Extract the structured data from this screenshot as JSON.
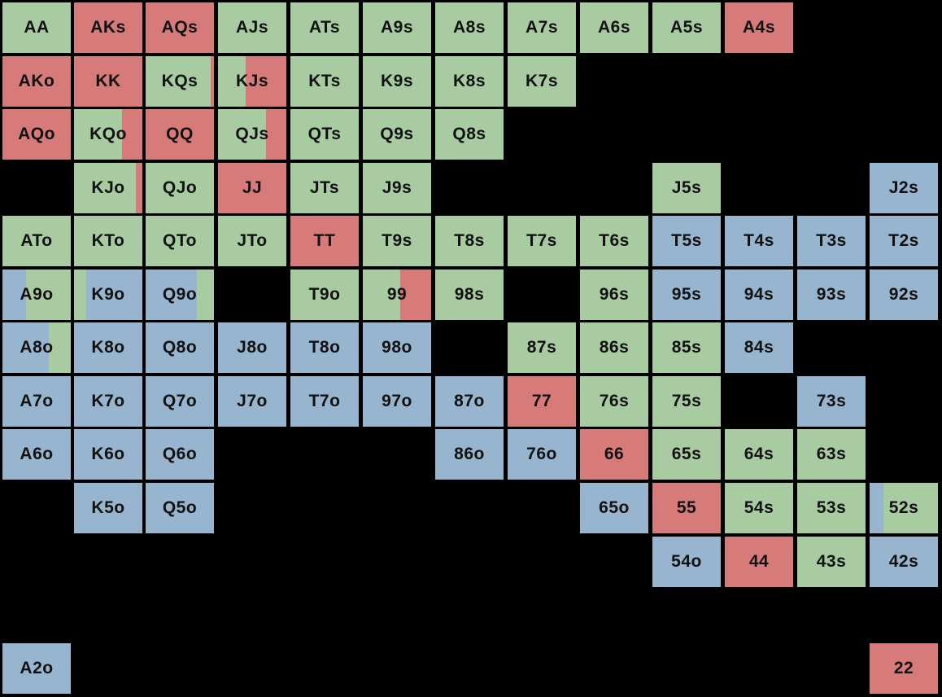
{
  "colors": {
    "background": "#000000",
    "green": "#A9CBA2",
    "red": "#D77A7A",
    "blue": "#97B5CE"
  },
  "chart_data": {
    "type": "table",
    "rows": [
      {
        "cells": [
          {
            "label": "AA",
            "color": "green"
          },
          {
            "label": "AKs",
            "color": "red"
          },
          {
            "label": "AQs",
            "color": "red"
          },
          {
            "label": "AJs",
            "color": "green"
          },
          {
            "label": "ATs",
            "color": "green"
          },
          {
            "label": "A9s",
            "color": "green"
          },
          {
            "label": "A8s",
            "color": "green"
          },
          {
            "label": "A7s",
            "color": "green"
          },
          {
            "label": "A6s",
            "color": "green"
          },
          {
            "label": "A5s",
            "color": "green"
          },
          {
            "label": "A4s",
            "color": "red"
          },
          null,
          null
        ]
      },
      {
        "cells": [
          {
            "label": "AKo",
            "color": "red"
          },
          {
            "label": "KK",
            "color": "red"
          },
          {
            "label": "KQs",
            "color": "green",
            "split": {
              "color": "red",
              "side": "right",
              "fraction": 0.05
            }
          },
          {
            "label": "KJs",
            "color": "green",
            "split": {
              "color": "red",
              "side": "right",
              "fraction": 0.6
            }
          },
          {
            "label": "KTs",
            "color": "green"
          },
          {
            "label": "K9s",
            "color": "green"
          },
          {
            "label": "K8s",
            "color": "green"
          },
          {
            "label": "K7s",
            "color": "green"
          },
          null,
          null,
          null,
          null,
          null
        ]
      },
      {
        "cells": [
          {
            "label": "AQo",
            "color": "red"
          },
          {
            "label": "KQo",
            "color": "green",
            "split": {
              "color": "red",
              "side": "right",
              "fraction": 0.3
            }
          },
          {
            "label": "QQ",
            "color": "red"
          },
          {
            "label": "QJs",
            "color": "green",
            "split": {
              "color": "red",
              "side": "right",
              "fraction": 0.3
            }
          },
          {
            "label": "QTs",
            "color": "green"
          },
          {
            "label": "Q9s",
            "color": "green"
          },
          {
            "label": "Q8s",
            "color": "green"
          },
          null,
          null,
          null,
          null,
          null,
          null
        ]
      },
      {
        "cells": [
          null,
          {
            "label": "KJo",
            "color": "green",
            "split": {
              "color": "red",
              "side": "right",
              "fraction": 0.1
            }
          },
          {
            "label": "QJo",
            "color": "green"
          },
          {
            "label": "JJ",
            "color": "red"
          },
          {
            "label": "JTs",
            "color": "green"
          },
          {
            "label": "J9s",
            "color": "green"
          },
          null,
          null,
          null,
          {
            "label": "J5s",
            "color": "green"
          },
          null,
          null,
          {
            "label": "J2s",
            "color": "blue"
          }
        ]
      },
      {
        "cells": [
          {
            "label": "ATo",
            "color": "green"
          },
          {
            "label": "KTo",
            "color": "green"
          },
          {
            "label": "QTo",
            "color": "green"
          },
          {
            "label": "JTo",
            "color": "green"
          },
          {
            "label": "TT",
            "color": "red"
          },
          {
            "label": "T9s",
            "color": "green"
          },
          {
            "label": "T8s",
            "color": "green"
          },
          {
            "label": "T7s",
            "color": "green"
          },
          {
            "label": "T6s",
            "color": "green"
          },
          {
            "label": "T5s",
            "color": "blue"
          },
          {
            "label": "T4s",
            "color": "blue"
          },
          {
            "label": "T3s",
            "color": "blue"
          },
          {
            "label": "T2s",
            "color": "blue"
          }
        ]
      },
      {
        "cells": [
          {
            "label": "A9o",
            "color": "green",
            "split": {
              "color": "blue",
              "side": "left",
              "fraction": 0.35
            }
          },
          {
            "label": "K9o",
            "color": "blue",
            "split": {
              "color": "green",
              "side": "left",
              "fraction": 0.18
            }
          },
          {
            "label": "Q9o",
            "color": "blue",
            "split": {
              "color": "green",
              "side": "right",
              "fraction": 0.25
            }
          },
          null,
          {
            "label": "T9o",
            "color": "green"
          },
          {
            "label": "99",
            "color": "green",
            "split": {
              "color": "red",
              "side": "right",
              "fraction": 0.45
            }
          },
          {
            "label": "98s",
            "color": "green"
          },
          null,
          {
            "label": "96s",
            "color": "green"
          },
          {
            "label": "95s",
            "color": "blue"
          },
          {
            "label": "94s",
            "color": "blue"
          },
          {
            "label": "93s",
            "color": "blue"
          },
          {
            "label": "92s",
            "color": "blue"
          }
        ]
      },
      {
        "cells": [
          {
            "label": "A8o",
            "color": "blue",
            "split": {
              "color": "green",
              "side": "right",
              "fraction": 0.32
            }
          },
          {
            "label": "K8o",
            "color": "blue"
          },
          {
            "label": "Q8o",
            "color": "blue"
          },
          {
            "label": "J8o",
            "color": "blue"
          },
          {
            "label": "T8o",
            "color": "blue"
          },
          {
            "label": "98o",
            "color": "blue"
          },
          null,
          {
            "label": "87s",
            "color": "green"
          },
          {
            "label": "86s",
            "color": "green"
          },
          {
            "label": "85s",
            "color": "green"
          },
          {
            "label": "84s",
            "color": "blue"
          },
          null,
          null
        ]
      },
      {
        "cells": [
          {
            "label": "A7o",
            "color": "blue"
          },
          {
            "label": "K7o",
            "color": "blue"
          },
          {
            "label": "Q7o",
            "color": "blue"
          },
          {
            "label": "J7o",
            "color": "blue"
          },
          {
            "label": "T7o",
            "color": "blue"
          },
          {
            "label": "97o",
            "color": "blue"
          },
          {
            "label": "87o",
            "color": "blue"
          },
          {
            "label": "77",
            "color": "red"
          },
          {
            "label": "76s",
            "color": "green"
          },
          {
            "label": "75s",
            "color": "green"
          },
          null,
          {
            "label": "73s",
            "color": "blue"
          },
          null
        ]
      },
      {
        "cells": [
          {
            "label": "A6o",
            "color": "blue"
          },
          {
            "label": "K6o",
            "color": "blue"
          },
          {
            "label": "Q6o",
            "color": "blue"
          },
          null,
          null,
          null,
          {
            "label": "86o",
            "color": "blue"
          },
          {
            "label": "76o",
            "color": "blue"
          },
          {
            "label": "66",
            "color": "red"
          },
          {
            "label": "65s",
            "color": "green"
          },
          {
            "label": "64s",
            "color": "green"
          },
          {
            "label": "63s",
            "color": "green"
          },
          null
        ]
      },
      {
        "cells": [
          null,
          {
            "label": "K5o",
            "color": "blue"
          },
          {
            "label": "Q5o",
            "color": "blue"
          },
          null,
          null,
          null,
          null,
          null,
          {
            "label": "65o",
            "color": "blue"
          },
          {
            "label": "55",
            "color": "red"
          },
          {
            "label": "54s",
            "color": "green"
          },
          {
            "label": "53s",
            "color": "green"
          },
          {
            "label": "52s",
            "color": "green",
            "split": {
              "color": "blue",
              "side": "left",
              "fraction": 0.2
            }
          }
        ]
      },
      {
        "cells": [
          null,
          null,
          null,
          null,
          null,
          null,
          null,
          null,
          null,
          {
            "label": "54o",
            "color": "blue"
          },
          {
            "label": "44",
            "color": "red"
          },
          {
            "label": "43s",
            "color": "green"
          },
          {
            "label": "42s",
            "color": "blue"
          }
        ]
      },
      {
        "cells": [
          null,
          null,
          null,
          null,
          null,
          null,
          null,
          null,
          null,
          null,
          null,
          null,
          null
        ]
      },
      {
        "cells": [
          {
            "label": "A2o",
            "color": "blue"
          },
          null,
          null,
          null,
          null,
          null,
          null,
          null,
          null,
          null,
          null,
          null,
          {
            "label": "22",
            "color": "red"
          }
        ]
      }
    ]
  }
}
